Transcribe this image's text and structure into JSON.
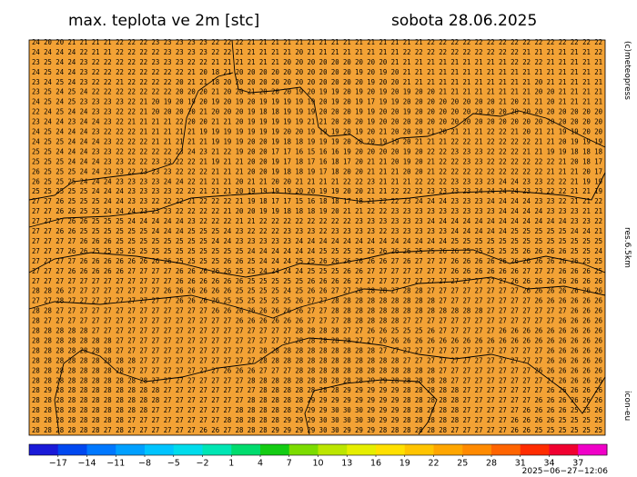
{
  "header": {
    "title": "max. teplota ve 2m [stc]",
    "date": "sobota 28.06.2025"
  },
  "side_labels": {
    "copyright": "(c)meteopress",
    "resolution": "res.6.5km",
    "model": "icon-eu"
  },
  "map": {
    "background": "#f3a235",
    "rows": [
      "24 20 20 21 21 21 21 22 22 22 23 23 23 23 23 22 22 22 21 21 21 21 21 21 21 21 21 21 21 21 21 21 21 22 22 22 22 22 22 22 22 22 22 22 22 22 22 22",
      "24 24 24 24 22 21 21 22 22 22 22 23 23 23 23 22 22 21 21 21 21 21 20 21 21 21 21 21 21 21 21 22 22 22 22 22 22 22 22 22 22 21 21 21 21 21 21 22",
      "23 25 24 24 23 22 22 22 22 22 23 23 23 22 22 21 21 21 21 21 21 20 20 20 20 20 20 20 20 20 21 21 21 21 21 21 21 21 21 21 22 22 22 21 21 21 21 21",
      "24 25 24 24 23 22 22 22 22 22 22 22 22 21 20 18 21 20 20 20 20 20 20 20 20 20 20 19 20 19 20 21 21 21 21 21 21 21 21 21 21 21 21 21 21 21 21 21",
      "23 24 25 24 23 22 22 21 22 22 22 22 20 21 21 18 20 20 20 20 20 20 20 20 20 20 20 20 19 20 20 21 21 21 21 21 21 21 21 21 21 21 20 21 21 21 21 21",
      "23 25 24 25 24 22 22 22 22 22 22 22 20 20 20 21 20 20 21 20 20 20 19 20 19 19 20 19 20 19 20 19 20 20 21 21 21 21 21 21 21 21 20 20 21 21 21 21",
      "24 25 24 25 23 23 23 23 22 21 20 19 20 19 20 19 20 19 20 19 19 19 19 19 20 19 20 19 17 19 19 20 20 20 20 20 20 20 20 21 20 21 21 20 21 21 21 21",
      "22 24 25 24 24 23 23 22 22 21 20 20 20 20 21 20 20 20 19 18 18 19 19 19 20 20 20 19 19 20 20 19 20 20 20 20 20 20 20 20 20 20 20 20 20 20 20 20",
      "23 24 24 23 24 24 23 22 21 21 21 21 22 20 20 21 21 20 19 19 19 19 19 21 21 20 20 20 19 20 20 20 20 20 20 20 20 20 20 20 20 20 20 20 20 20 20 20",
      "24 25 24 24 24 23 22 22 22 21 21 21 21 21 19 19 19 19 19 19 19 20 20 19 19 19 20 19 20 21 20 20 20 21 20 21 21 21 22 22 21 20 21 21 19 19 20 20",
      "24 25 25 24 24 24 23 22 22 22 21 21 21 21 21 19 19 19 20 20 19 18 18 19 19 19 20 20 20 19 19 20 21 21 21 22 22 21 22 22 22 22 21 21 20 19 19 19",
      "25 25 24 24 24 23 23 22 22 22 22 22 23 24 23 21 22 19 20 20 17 17 16 15 16 16 19 20 20 20 20 19 20 22 22 23 23 23 22 22 22 21 21 19 19 18 18 18",
      "25 25 25 24 24 24 23 23 22 22 23 23 22 22 21 19 21 21 20 20 19 17 18 17 16 18 17 20 21 21 20 19 20 21 22 22 23 23 22 22 22 22 22 22 21 20 18 17",
      "26 25 25 25 24 24 23 23 22 23 23 23 22 22 22 21 21 21 20 20 19 18 18 19 17 18 20 20 21 21 21 20 20 21 22 22 22 22 22 22 22 22 22 21 21 21 20 17",
      "26 25 25 25 24 24 24 23 23 23 23 24 24 22 21 21 21 20 21 21 20 20 21 21 21 21 22 22 23 21 21 21 22 22 22 23 23 23 23 24 24 23 23 22 22 21 19 19",
      "25 25 25 25 25 24 24 24 23 23 23 23 22 22 21 21 21 20 19 19 19 19 20 20 19 19 20 20 21 21 22 22 22 23 23 23 23 24 24 24 24 23 23 22 22 21 21 19",
      "27 27 26 25 25 25 24 24 23 23 22 22 22 21 22 22 22 21 19 18 17 17 15 16 18 18 17 18 21 22 22 23 24 24 24 23 23 23 24 24 24 24 23 23 22 21 21 22",
      "27 27 26 26 25 25 24 24 24 23 23 23 22 22 22 22 21 20 20 19 19 18 18 18 19 20 21 21 22 22 23 23 23 23 23 23 23 23 23 24 24 24 24 23 23 23 21 21",
      "27 27 27 26 26 25 25 25 24 24 24 24 24 23 22 22 22 21 21 22 22 22 22 22 22 22 22 23 23 23 23 23 23 24 24 24 24 24 24 24 24 24 24 24 24 23 23 22",
      "27 27 26 26 25 25 25 25 25 25 24 24 24 25 25 25 24 23 22 22 22 23 23 23 22 23 23 23 23 22 23 23 23 23 23 24 24 24 24 24 25 25 25 25 25 24 24 21",
      "27 27 27 27 26 26 26 25 25 25 25 25 25 25 25 24 24 23 23 23 23 23 24 24 24 24 24 24 24 24 24 24 24 24 24 25 25 25 25 25 25 25 25 25 25 25 25 25",
      "27 27 27 26 26 25 25 25 25 25 25 25 25 25 25 25 25 25 24 24 24 24 24 24 25 25 25 25 25 26 26 26 25 25 26 26 25 25 25 25 25 26 26 26 26 25 25 24",
      "27 27 27 27 26 26 26 26 26 26 26 26 25 25 25 25 26 26 25 24 24 24 25 25 26 26 26 26 26 26 27 26 27 27 27 26 26 26 26 26 26 26 26 26 26 26 25 25",
      "27 27 27 26 26 26 26 26 27 27 27 27 26 26 26 26 26 25 25 24 24 24 24 25 25 25 26 26 27 27 27 27 27 27 27 26 26 26 26 26 26 27 27 27 26 26 26 25",
      "27 27 27 27 27 27 27 27 27 27 27 27 26 26 26 26 26 26 25 25 25 25 25 26 26 26 26 27 27 27 27 27 27 27 27 27 27 27 27 27 26 26 26 26 26 26 26 26",
      "28 28 26 27 27 27 27 27 27 27 27 26 26 26 26 26 26 25 25 25 25 24 25 26 26 27 27 28 28 28 27 28 28 27 27 27 27 27 27 27 27 26 26 26 26 26 26 26",
      "27 27 28 27 27 27 27 27 27 27 27 27 26 26 26 26 25 25 25 25 25 25 26 27 27 28 28 28 28 28 28 28 28 28 27 27 27 27 27 27 27 27 26 26 26 26 26 26",
      "28 28 27 27 27 27 27 27 27 27 27 27 27 27 27 26 26 26 26 26 26 26 26 27 27 28 28 28 28 28 28 28 28 28 28 28 28 28 27 27 27 27 27 27 27 26 26 26",
      "28 27 27 27 27 27 27 27 27 27 27 27 27 27 27 27 27 26 26 26 26 26 26 27 27 27 28 28 28 28 28 27 27 27 27 27 27 27 27 27 27 27 27 27 26 26 26 26",
      "28 28 28 28 28 27 27 27 27 27 27 27 27 27 27 27 27 27 27 27 27 27 28 28 28 28 27 27 26 26 25 25 25 26 27 27 27 27 27 26 26 26 26 26 26 26 26 26",
      "28 28 28 28 28 28 28 27 27 27 27 27 27 27 27 27 27 27 27 27 27 27 28 28 28 28 28 27 27 26 26 26 26 26 26 26 26 26 26 26 26 26 26 26 26 26 26 26",
      "28 28 28 28 28 28 28 27 27 27 27 27 27 27 27 27 27 27 27 28 28 28 28 28 28 28 28 28 28 27 27 27 27 27 27 27 27 27 27 27 27 27 27 26 26 26 26 26",
      "28 28 28 28 28 28 28 28 28 27 27 27 27 27 27 27 27 27 27 28 28 28 28 28 28 28 28 28 28 28 28 27 27 27 27 27 27 27 27 27 27 27 27 26 26 26 26 26",
      "28 28 28 28 28 28 28 28 27 27 27 27 27 27 27 27 26 26 26 27 27 27 28 28 28 28 28 28 28 28 28 28 28 28 27 27 27 27 27 27 27 27 26 26 26 26 26 26",
      "28 28 28 28 28 28 28 28 28 28 27 27 27 27 27 27 27 27 28 28 28 28 28 28 28 28 28 28 29 29 28 28 28 28 28 27 27 27 27 27 27 27 27 27 26 26 26 26",
      "28 29 28 28 28 28 28 28 28 28 28 27 27 27 27 27 27 27 27 28 28 28 28 28 28 28 29 29 29 29 29 28 28 28 28 28 27 27 27 27 27 27 27 26 26 26 26 26",
      "28 28 28 28 28 28 28 28 28 28 28 27 27 27 27 27 27 27 28 28 28 28 28 29 29 29 29 29 29 29 29 28 28 28 28 28 27 27 27 27 27 27 26 26 26 26 26 26",
      "28 28 28 28 28 28 28 28 28 28 27 27 27 27 27 27 27 28 28 28 28 28 29 29 29 30 30 30 29 29 29 28 28 28 28 28 27 27 27 27 27 26 26 26 26 25 25 26",
      "28 28 28 28 28 28 28 28 27 27 27 27 27 27 27 27 28 28 28 28 28 29 29 29 30 30 30 30 30 29 29 28 28 28 28 28 27 27 27 27 26 26 26 26 25 25 25 25",
      "28 28 28 28 28 28 27 28 27 27 27 27 27 27 26 26 27 28 28 28 29 29 29 29 30 30 29 29 29 28 28 28 28 28 28 27 27 27 27 27 26 26 25 25 25 25 25 25"
    ]
  },
  "colorbar": {
    "range": [
      -20,
      40
    ],
    "colors": [
      "#1a1ad8",
      "#0048f0",
      "#0078ff",
      "#00a0ff",
      "#00c4ff",
      "#00dcec",
      "#00e6b4",
      "#00dc6e",
      "#14cc14",
      "#7cdc00",
      "#bce600",
      "#e6ee00",
      "#ffe000",
      "#ffc400",
      "#ffa600",
      "#ff8a00",
      "#ff6400",
      "#ff2c00",
      "#f00030",
      "#f000c8"
    ],
    "ticks": [
      {
        "value": -17,
        "label": "−17"
      },
      {
        "value": -14,
        "label": "−14"
      },
      {
        "value": -11,
        "label": "−11"
      },
      {
        "value": -8,
        "label": "−8"
      },
      {
        "value": -5,
        "label": "−5"
      },
      {
        "value": -2,
        "label": "−2"
      },
      1,
      4,
      7,
      10,
      13,
      16,
      19,
      22,
      25,
      28,
      31,
      34,
      37
    ]
  },
  "timestamp": "2025−06−27−12:06"
}
